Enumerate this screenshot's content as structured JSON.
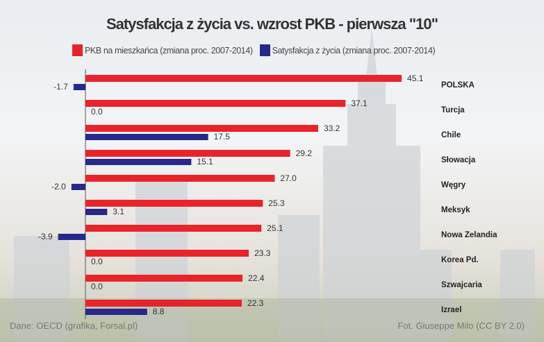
{
  "chart_data": {
    "type": "bar",
    "orientation": "horizontal",
    "title": "Satysfakcja z życia vs. wzrost PKB - pierwsza \"10\"",
    "categories": [
      "POLSKA",
      "Turcja",
      "Chile",
      "Słowacja",
      "Węgry",
      "Meksyk",
      "Nowa Zelandia",
      "Korea Pd.",
      "Szwajcaria",
      "Izrael"
    ],
    "series": [
      {
        "name": "PKB na mieszkańca (zmiana proc. 2007-2014)",
        "color": "#e8232a",
        "values": [
          45.1,
          37.1,
          33.2,
          29.2,
          27.0,
          25.3,
          25.1,
          23.3,
          22.4,
          22.3
        ]
      },
      {
        "name": "Satysfakcja z życia (zmiana proc. 2007-2014)",
        "color": "#26288a",
        "values": [
          -1.7,
          0.0,
          17.5,
          15.1,
          -2.0,
          3.1,
          -3.9,
          0.0,
          0.0,
          8.8
        ]
      }
    ],
    "legend": "top",
    "grid": false
  },
  "footer": {
    "source": "Dane: OECD (grafika, Forsal.pl)",
    "photo": "Fot. Giuseppe Milo (CC BY 2.0)"
  }
}
